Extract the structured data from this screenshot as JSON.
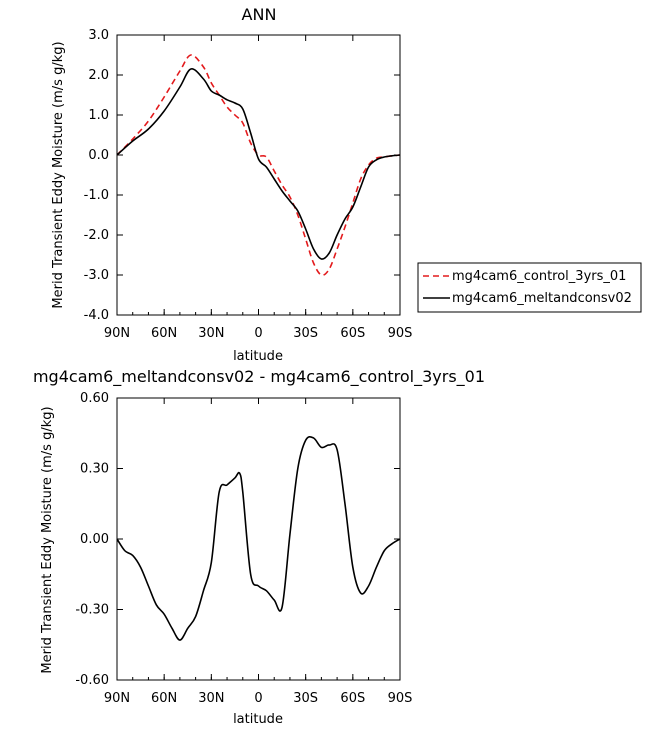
{
  "chart_data": [
    {
      "type": "line",
      "title": "ANN",
      "xlabel": "latitude",
      "ylabel": "Merid Transient Eddy Moisture (m/s g/kg)",
      "xlim": [
        90,
        -90
      ],
      "ylim": [
        -4.0,
        3.0
      ],
      "xticks": [
        {
          "v": 90,
          "label": "90N"
        },
        {
          "v": 60,
          "label": "60N"
        },
        {
          "v": 30,
          "label": "30N"
        },
        {
          "v": 0,
          "label": "0"
        },
        {
          "v": -30,
          "label": "30S"
        },
        {
          "v": -60,
          "label": "60S"
        },
        {
          "v": -90,
          "label": "90S"
        }
      ],
      "yticks": [
        {
          "v": 3.0,
          "label": "3.0"
        },
        {
          "v": 2.0,
          "label": "2.0"
        },
        {
          "v": 1.0,
          "label": "1.0"
        },
        {
          "v": 0.0,
          "label": "0.0"
        },
        {
          "v": -1.0,
          "label": "-1.0"
        },
        {
          "v": -2.0,
          "label": "-2.0"
        },
        {
          "v": -3.0,
          "label": "-3.0"
        },
        {
          "v": -4.0,
          "label": "-4.0"
        }
      ],
      "legend_position": "right",
      "series": [
        {
          "name": "mg4cam6_control_3yrs_01",
          "color": "#e31a1c",
          "dash": "dashed",
          "x": [
            90,
            80,
            70,
            60,
            50,
            43,
            35,
            30,
            25,
            20,
            15,
            10,
            5,
            0,
            -5,
            -10,
            -15,
            -20,
            -25,
            -30,
            -35,
            -40,
            -45,
            -50,
            -55,
            -60,
            -65,
            -70,
            -75,
            -80,
            -85,
            -90
          ],
          "y": [
            0.0,
            0.4,
            0.85,
            1.45,
            2.1,
            2.5,
            2.2,
            1.8,
            1.5,
            1.2,
            1.0,
            0.8,
            0.3,
            0.0,
            -0.05,
            -0.4,
            -0.75,
            -1.05,
            -1.5,
            -2.1,
            -2.7,
            -3.0,
            -2.85,
            -2.35,
            -1.8,
            -1.2,
            -0.6,
            -0.25,
            -0.08,
            -0.05,
            -0.02,
            0.0
          ]
        },
        {
          "name": "mg4cam6_meltandconsv02",
          "color": "#000000",
          "dash": "solid",
          "x": [
            90,
            80,
            70,
            60,
            50,
            43,
            35,
            30,
            25,
            20,
            15,
            10,
            5,
            0,
            -5,
            -10,
            -15,
            -20,
            -25,
            -30,
            -35,
            -40,
            -45,
            -50,
            -55,
            -60,
            -65,
            -70,
            -75,
            -80,
            -85,
            -90
          ],
          "y": [
            0.0,
            0.35,
            0.65,
            1.1,
            1.7,
            2.15,
            1.9,
            1.6,
            1.5,
            1.38,
            1.3,
            1.15,
            0.55,
            -0.1,
            -0.3,
            -0.6,
            -0.9,
            -1.15,
            -1.4,
            -1.85,
            -2.35,
            -2.6,
            -2.45,
            -2.0,
            -1.6,
            -1.3,
            -0.8,
            -0.3,
            -0.12,
            -0.05,
            -0.02,
            0.0
          ]
        }
      ]
    },
    {
      "type": "line",
      "title": "mg4cam6_meltandconsv02 - mg4cam6_control_3yrs_01",
      "xlabel": "latitude",
      "ylabel": "Merid Transient Eddy Moisture (m/s g/kg)",
      "xlim": [
        90,
        -90
      ],
      "ylim": [
        -0.6,
        0.6
      ],
      "xticks": [
        {
          "v": 90,
          "label": "90N"
        },
        {
          "v": 60,
          "label": "60N"
        },
        {
          "v": 30,
          "label": "30N"
        },
        {
          "v": 0,
          "label": "0"
        },
        {
          "v": -30,
          "label": "30S"
        },
        {
          "v": -60,
          "label": "60S"
        },
        {
          "v": -90,
          "label": "90S"
        }
      ],
      "yticks": [
        {
          "v": 0.6,
          "label": "0.60"
        },
        {
          "v": 0.3,
          "label": "0.30"
        },
        {
          "v": 0.0,
          "label": "0.00"
        },
        {
          "v": -0.3,
          "label": "-0.30"
        },
        {
          "v": -0.6,
          "label": "-0.60"
        }
      ],
      "series": [
        {
          "color": "#000000",
          "dash": "solid",
          "x": [
            90,
            85,
            80,
            75,
            70,
            65,
            60,
            55,
            50,
            45,
            40,
            35,
            30,
            25,
            20,
            15,
            12,
            10,
            5,
            0,
            -5,
            -10,
            -15,
            -20,
            -25,
            -30,
            -35,
            -40,
            -45,
            -50,
            -55,
            -60,
            -65,
            -70,
            -75,
            -80,
            -85,
            -90
          ],
          "y": [
            0.0,
            -0.05,
            -0.07,
            -0.12,
            -0.2,
            -0.28,
            -0.32,
            -0.38,
            -0.43,
            -0.38,
            -0.33,
            -0.22,
            -0.1,
            0.2,
            0.23,
            0.26,
            0.28,
            0.2,
            -0.15,
            -0.2,
            -0.22,
            -0.26,
            -0.29,
            0.02,
            0.3,
            0.42,
            0.43,
            0.39,
            0.4,
            0.38,
            0.15,
            -0.12,
            -0.23,
            -0.2,
            -0.12,
            -0.05,
            -0.02,
            0.0
          ]
        }
      ]
    }
  ]
}
